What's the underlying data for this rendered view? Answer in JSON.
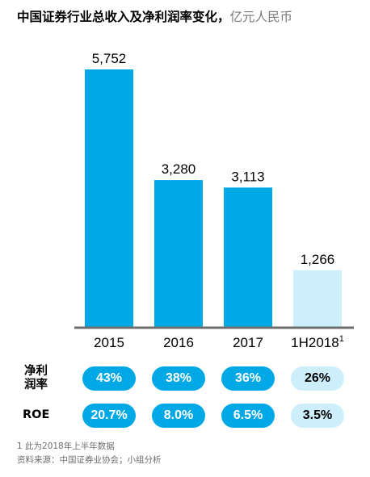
{
  "title": {
    "main": "中国证券行业总收入及净利润率变化，",
    "unit": "亿元人民币"
  },
  "chart_data": {
    "type": "bar",
    "title": "中国证券行业总收入及净利润率变化，亿元人民币",
    "categories": [
      "2015",
      "2016",
      "2017",
      "1H2018"
    ],
    "category_superscripts": [
      "",
      "",
      "",
      "1"
    ],
    "values": [
      5752,
      3280,
      3113,
      1266
    ],
    "value_labels": [
      "5,752",
      "3,280",
      "3,113",
      "1,266"
    ],
    "colors": [
      "#00a9e6",
      "#00a9e6",
      "#00a9e6",
      "#cdeffc"
    ],
    "ylim": [
      0,
      5752
    ],
    "axis_color": "#6e6e6e"
  },
  "metrics": [
    {
      "label": "净利\n润率",
      "values": [
        "43%",
        "38%",
        "36%",
        "26%"
      ]
    },
    {
      "label": "ROE",
      "values": [
        "20.7%",
        "8.0%",
        "6.5%",
        "3.5%"
      ]
    }
  ],
  "pill_colors": {
    "strong": "#00a9e6",
    "light": "#cdeffc",
    "strong_text": "#ffffff",
    "light_text": "#000000"
  },
  "footnotes": [
    "1 此为2018年上半年数据",
    "资料来源：中国证券业协会；小组分析"
  ]
}
